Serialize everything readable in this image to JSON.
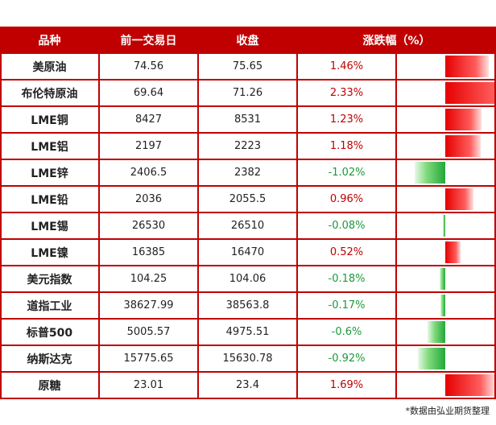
{
  "chart_data": {
    "type": "table",
    "columns": [
      "品种",
      "前一交易日",
      "收盘",
      "涨跌幅（%）"
    ],
    "rows": [
      {
        "name": "美原油",
        "prev": "74.56",
        "close": "75.65",
        "change": "1.46%",
        "value": 1.46
      },
      {
        "name": "布伦特原油",
        "prev": "69.64",
        "close": "71.26",
        "change": "2.33%",
        "value": 2.33
      },
      {
        "name": "LME铜",
        "prev": "8427",
        "close": "8531",
        "change": "1.23%",
        "value": 1.23
      },
      {
        "name": "LME铝",
        "prev": "2197",
        "close": "2223",
        "change": "1.18%",
        "value": 1.18
      },
      {
        "name": "LME锌",
        "prev": "2406.5",
        "close": "2382",
        "change": "-1.02%",
        "value": -1.02
      },
      {
        "name": "LME铅",
        "prev": "2036",
        "close": "2055.5",
        "change": "0.96%",
        "value": 0.96
      },
      {
        "name": "LME锡",
        "prev": "26530",
        "close": "26510",
        "change": "-0.08%",
        "value": -0.08
      },
      {
        "name": "LME镍",
        "prev": "16385",
        "close": "16470",
        "change": "0.52%",
        "value": 0.52
      },
      {
        "name": "美元指数",
        "prev": "104.25",
        "close": "104.06",
        "change": "-0.18%",
        "value": -0.18
      },
      {
        "name": "道指工业",
        "prev": "38627.99",
        "close": "38563.8",
        "change": "-0.17%",
        "value": -0.17
      },
      {
        "name": "标普500",
        "prev": "5005.57",
        "close": "4975.51",
        "change": "-0.6%",
        "value": -0.6
      },
      {
        "name": "纳斯达克",
        "prev": "15775.65",
        "close": "15630.78",
        "change": "-0.92%",
        "value": -0.92
      },
      {
        "name": "原糖",
        "prev": "23.01",
        "close": "23.4",
        "change": "1.69%",
        "value": 1.69
      }
    ],
    "colors": {
      "header_bg": "#c00000",
      "positive": "#c00000",
      "negative": "#1a9b3a",
      "bar_positive": "#e60000",
      "bar_negative": "#22a83a"
    }
  },
  "footnote": "*数据由弘业期货整理"
}
